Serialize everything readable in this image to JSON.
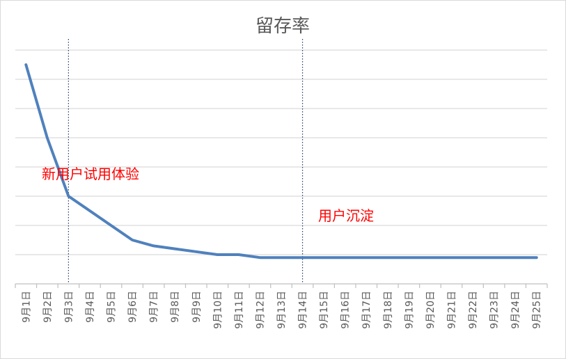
{
  "chart_data": {
    "type": "line",
    "title": "留存率",
    "categories": [
      "9月1日",
      "9月2日",
      "9月3日",
      "9月4日",
      "9月5日",
      "9月6日",
      "9月7日",
      "9月8日",
      "9月9日",
      "9月10日",
      "9月11日",
      "9月12日",
      "9月13日",
      "9月14日",
      "9月15日",
      "9月16日",
      "9月17日",
      "9月18日",
      "9月19日",
      "9月20日",
      "9月21日",
      "9月22日",
      "9月23日",
      "9月24日",
      "9月25日"
    ],
    "series": [
      {
        "values": [
          7.5,
          5.0,
          3.0,
          2.5,
          2.0,
          1.5,
          1.3,
          1.2,
          1.1,
          1.0,
          1.0,
          0.9,
          0.9,
          0.9,
          0.9,
          0.9,
          0.9,
          0.9,
          0.9,
          0.9,
          0.9,
          0.9,
          0.9,
          0.9,
          0.9
        ],
        "color": "#4f81bd"
      }
    ],
    "ylim": [
      0,
      8
    ],
    "grid": true,
    "y_tick_labels_shown": false,
    "annotations": [
      {
        "text": "新用户试用体验"
      },
      {
        "text": "用户沉淀"
      }
    ],
    "reference_lines": [
      {
        "x": "9月3日",
        "style": "dotted"
      },
      {
        "x": "9月14日",
        "style": "dotted"
      }
    ]
  }
}
